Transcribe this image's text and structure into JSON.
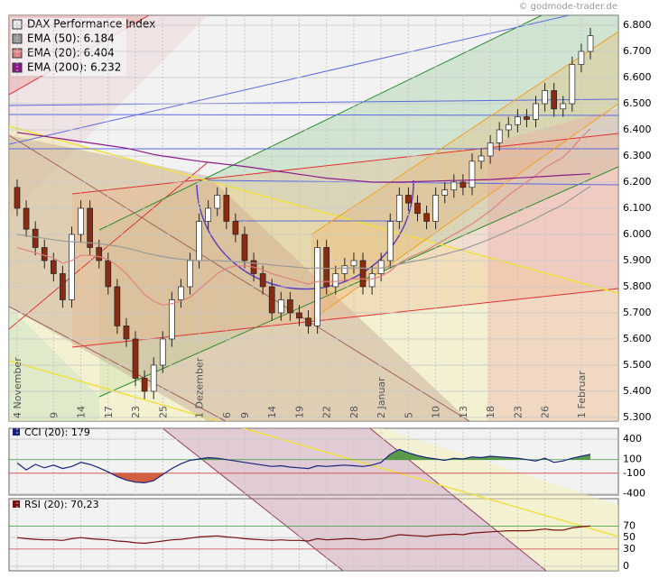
{
  "watermark": "© godmode-trader.de",
  "chart_data": [
    {
      "type": "candlestick",
      "title": "DAX Performance Index",
      "color": "#e8e8e8",
      "up_color": "#ffffff",
      "down_color": "#8b2a10",
      "categories": [
        "4 November",
        null,
        null,
        null,
        "9",
        null,
        null,
        "14",
        null,
        null,
        "17",
        null,
        null,
        "23",
        null,
        null,
        "25",
        null,
        null,
        null,
        "1 Dezember",
        null,
        null,
        "6",
        null,
        "9",
        null,
        null,
        "14",
        null,
        null,
        "19",
        null,
        null,
        "22",
        null,
        null,
        "28",
        null,
        null,
        "2 Januar",
        null,
        null,
        "5",
        null,
        null,
        "10",
        null,
        null,
        "13",
        null,
        null,
        "18",
        null,
        null,
        "23",
        null,
        null,
        "26",
        null,
        null,
        null,
        "1 Februar",
        null
      ],
      "open": [
        6180,
        6100,
        6020,
        5950,
        5900,
        5850,
        5750,
        6000,
        6100,
        5950,
        5900,
        5800,
        5650,
        5600,
        5450,
        5400,
        5500,
        5600,
        5750,
        5800,
        5900,
        6050,
        6100,
        6150,
        6050,
        6000,
        5900,
        5850,
        5800,
        5700,
        5750,
        5700,
        5680,
        5650,
        5950,
        5800,
        5850,
        5880,
        5900,
        5800,
        5850,
        5900,
        6050,
        6150,
        6120,
        6080,
        6050,
        6150,
        6170,
        6200,
        6180,
        6280,
        6300,
        6350,
        6400,
        6420,
        6450,
        6440,
        6500,
        6550,
        6480,
        6500,
        6650,
        6700
      ],
      "high": [
        6210,
        6130,
        6050,
        5980,
        5930,
        5880,
        6030,
        6130,
        6130,
        5980,
        5930,
        5830,
        5680,
        5630,
        5480,
        5530,
        5630,
        5780,
        5830,
        5930,
        6080,
        6130,
        6180,
        6180,
        6080,
        6030,
        5930,
        5880,
        5830,
        5780,
        5780,
        5730,
        5710,
        5980,
        5980,
        5880,
        5910,
        5930,
        5930,
        5880,
        5930,
        6080,
        6180,
        6180,
        6150,
        6110,
        6180,
        6200,
        6230,
        6230,
        6310,
        6330,
        6380,
        6430,
        6450,
        6480,
        6480,
        6530,
        6580,
        6580,
        6530,
        6680,
        6730,
        6790
      ],
      "low": [
        6070,
        5990,
        5920,
        5870,
        5820,
        5720,
        5720,
        5970,
        5920,
        5870,
        5770,
        5620,
        5570,
        5420,
        5370,
        5370,
        5470,
        5570,
        5720,
        5770,
        5870,
        6020,
        6070,
        6020,
        5970,
        5870,
        5820,
        5770,
        5670,
        5670,
        5670,
        5650,
        5620,
        5620,
        5770,
        5770,
        5820,
        5850,
        5770,
        5770,
        5820,
        5870,
        6020,
        6090,
        6050,
        6020,
        6020,
        6120,
        6140,
        6150,
        6150,
        6250,
        6270,
        6320,
        6370,
        6390,
        6410,
        6410,
        6470,
        6450,
        6450,
        6470,
        6620,
        6670
      ],
      "close": [
        6100,
        6020,
        5950,
        5900,
        5850,
        5750,
        6000,
        6100,
        5950,
        5900,
        5800,
        5650,
        5600,
        5450,
        5400,
        5500,
        5600,
        5750,
        5800,
        5900,
        6050,
        6100,
        6150,
        6050,
        6000,
        5900,
        5850,
        5800,
        5700,
        5750,
        5700,
        5680,
        5650,
        5950,
        5800,
        5850,
        5880,
        5900,
        5800,
        5850,
        5900,
        6050,
        6150,
        6120,
        6080,
        6050,
        6150,
        6170,
        6200,
        6180,
        6280,
        6300,
        6350,
        6400,
        6420,
        6450,
        6440,
        6500,
        6550,
        6480,
        6500,
        6650,
        6700,
        6760
      ],
      "series": [
        {
          "name": "EMA (50): 6.184",
          "color": "#9a9a9a",
          "values": [
            6000,
            5995,
            5990,
            5985,
            5980,
            5975,
            5972,
            5970,
            5968,
            5965,
            5960,
            5955,
            5948,
            5940,
            5930,
            5922,
            5915,
            5910,
            5905,
            5902,
            5900,
            5900,
            5900,
            5898,
            5896,
            5893,
            5890,
            5887,
            5883,
            5880,
            5877,
            5874,
            5870,
            5872,
            5870,
            5870,
            5871,
            5872,
            5871,
            5871,
            5872,
            5877,
            5886,
            5893,
            5900,
            5906,
            5915,
            5924,
            5934,
            5943,
            5956,
            5969,
            5983,
            5998,
            6013,
            6029,
            6044,
            6061,
            6080,
            6097,
            6114,
            6138,
            6161,
            6184
          ]
        },
        {
          "name": "EMA (20): 6.404",
          "color": "#e08080",
          "values": [
            5950,
            5940,
            5930,
            5920,
            5910,
            5890,
            5900,
            5920,
            5920,
            5915,
            5905,
            5880,
            5850,
            5810,
            5770,
            5745,
            5730,
            5735,
            5745,
            5760,
            5790,
            5820,
            5850,
            5870,
            5880,
            5880,
            5875,
            5865,
            5850,
            5840,
            5830,
            5820,
            5810,
            5820,
            5820,
            5820,
            5825,
            5830,
            5830,
            5830,
            5840,
            5860,
            5890,
            5910,
            5925,
            5940,
            5960,
            5980,
            6000,
            6020,
            6040,
            6065,
            6090,
            6120,
            6150,
            6175,
            6200,
            6225,
            6255,
            6275,
            6295,
            6330,
            6370,
            6404
          ]
        },
        {
          "name": "EMA (200): 6.232",
          "color": "#8b1a8b",
          "values": [
            6390,
            6385,
            6380,
            6375,
            6370,
            6365,
            6360,
            6355,
            6350,
            6345,
            6340,
            6335,
            6330,
            6322,
            6314,
            6306,
            6300,
            6295,
            6290,
            6285,
            6280,
            6276,
            6272,
            6268,
            6264,
            6260,
            6255,
            6250,
            6245,
            6240,
            6235,
            6230,
            6225,
            6220,
            6215,
            6212,
            6209,
            6206,
            6203,
            6200,
            6200,
            6200,
            6200,
            6201,
            6202,
            6203,
            6204,
            6205,
            6206,
            6207,
            6208,
            6209,
            6210,
            6212,
            6214,
            6216,
            6218,
            6220,
            6222,
            6224,
            6226,
            6228,
            6230,
            6232
          ]
        }
      ],
      "ylim": [
        5286,
        6838
      ],
      "yticks": [
        {
          "value": 5300,
          "label": "5.300"
        },
        {
          "value": 5400,
          "label": "5.400"
        },
        {
          "value": 5500,
          "label": "5.500"
        },
        {
          "value": 5600,
          "label": "5.600"
        },
        {
          "value": 5700,
          "label": "5.700"
        },
        {
          "value": 5800,
          "label": "5.800"
        },
        {
          "value": 5900,
          "label": "5.900"
        },
        {
          "value": 6000,
          "label": "6.000"
        },
        {
          "value": 6100,
          "label": "6.100"
        },
        {
          "value": 6200,
          "label": "6.200"
        },
        {
          "value": 6300,
          "label": "6.300"
        },
        {
          "value": 6400,
          "label": "6.400"
        },
        {
          "value": 6500,
          "label": "6.500"
        },
        {
          "value": 6600,
          "label": "6.600"
        },
        {
          "value": 6700,
          "label": "6.700"
        },
        {
          "value": 6800,
          "label": "6.800"
        }
      ],
      "grid": true
    },
    {
      "type": "line",
      "series": [
        {
          "name": "CCI (20): 179",
          "color": "#1a237e",
          "values": [
            50,
            -50,
            30,
            -20,
            20,
            -30,
            0,
            60,
            30,
            -20,
            -80,
            -150,
            -200,
            -230,
            -240,
            -210,
            -120,
            -30,
            40,
            90,
            110,
            130,
            120,
            100,
            80,
            60,
            40,
            20,
            0,
            10,
            -10,
            -20,
            -30,
            10,
            0,
            10,
            20,
            10,
            0,
            20,
            60,
            180,
            250,
            200,
            160,
            130,
            110,
            90,
            120,
            110,
            140,
            130,
            150,
            140,
            130,
            120,
            100,
            80,
            120,
            60,
            80,
            120,
            150,
            179
          ]
        }
      ],
      "ylim": [
        -420,
        560
      ],
      "yticks": [
        400,
        100,
        -100,
        -400
      ],
      "tick_colors": [
        "#000000",
        "#3a9a3a",
        "#d04040",
        "#000000"
      ],
      "fill_colors": [
        null,
        "#5a9a4a",
        "#d06040",
        null
      ],
      "grid": true
    },
    {
      "type": "line",
      "series": [
        {
          "name": "RSI (20): 70,23",
          "color": "#7a1010",
          "values": [
            50,
            48,
            47,
            46,
            46,
            45,
            48,
            50,
            48,
            47,
            46,
            44,
            43,
            41,
            40,
            42,
            44,
            46,
            47,
            49,
            51,
            52,
            53,
            51,
            50,
            48,
            47,
            46,
            45,
            46,
            45,
            45,
            44,
            48,
            46,
            47,
            48,
            48,
            46,
            47,
            48,
            52,
            55,
            54,
            53,
            52,
            54,
            55,
            56,
            55,
            58,
            59,
            60,
            61,
            62,
            62,
            62,
            63,
            65,
            63,
            63,
            67,
            69,
            70.23
          ]
        }
      ],
      "ylim": [
        -8,
        118
      ],
      "yticks": [
        70,
        50,
        30,
        0
      ],
      "tick_colors": [
        "#3a9a3a",
        "#000000",
        "#d04040",
        "#000000"
      ],
      "grid": true
    }
  ]
}
